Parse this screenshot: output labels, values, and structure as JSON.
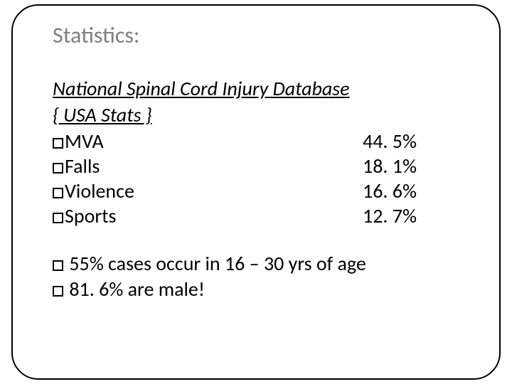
{
  "title": "Statistics:",
  "subtitle_line1": "National Spinal Cord Injury Database",
  "subtitle_line2": " { USA Stats }",
  "stats": [
    {
      "label": "MVA",
      "value": "44. 5%"
    },
    {
      "label": "Falls",
      "value": "18. 1%"
    },
    {
      "label": "Violence",
      "value": "16. 6%"
    },
    {
      "label": "Sports",
      "value": "12. 7%"
    }
  ],
  "notes": [
    " 55% cases occur in 16 – 30 yrs of age",
    " 81. 6%  are male!"
  ],
  "colors": {
    "title": "#7f7f7f",
    "text": "#000000",
    "border": "#000000",
    "background": "#ffffff"
  },
  "fontsize": {
    "title": 32,
    "body": 28
  }
}
